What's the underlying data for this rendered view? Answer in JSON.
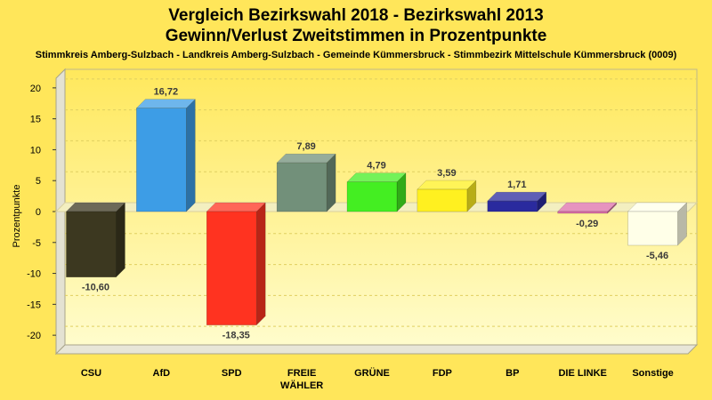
{
  "chart_data": {
    "type": "bar",
    "title": "Vergleich Bezirkswahl 2018 - Bezirkswahl 2013",
    "title2": "Gewinn/Verlust Zweitstimmen in Prozentpunkte",
    "subtitle": "Stimmkreis Amberg-Sulzbach - Landkreis Amberg-Sulzbach - Gemeinde Kümmersbruck - Stimmbezirk Mittelschule Kümmersbruck (0009)",
    "ylabel": "Prozentpunkte",
    "ylim": [
      -23,
      23
    ],
    "yticks": [
      20,
      15,
      10,
      5,
      0,
      -5,
      -10,
      -15,
      -20
    ],
    "grid": true,
    "categories": [
      "CSU",
      "AfD",
      "SPD",
      "FREIE WÄHLER",
      "GRÜNE",
      "FDP",
      "BP",
      "DIE LINKE",
      "Sonstige"
    ],
    "category_lines": [
      [
        "CSU"
      ],
      [
        "AfD"
      ],
      [
        "SPD"
      ],
      [
        "FREIE",
        "WÄHLER"
      ],
      [
        "GRÜNE"
      ],
      [
        "FDP"
      ],
      [
        "BP"
      ],
      [
        "DIE LINKE"
      ],
      [
        "Sonstige"
      ]
    ],
    "values": [
      -10.6,
      16.72,
      -18.35,
      7.89,
      4.79,
      3.59,
      1.71,
      -0.29,
      -5.46
    ],
    "value_labels": [
      "-10,60",
      "16,72",
      "-18,35",
      "7,89",
      "4,79",
      "3,59",
      "1,71",
      "-0,29",
      "-5,46"
    ],
    "colors": [
      "#3C3820",
      "#3D9DE6",
      "#FF3320",
      "#72907A",
      "#44EE22",
      "#FFF020",
      "#2A2A9E",
      "#DD6FAA",
      "#FFFFE8"
    ]
  }
}
